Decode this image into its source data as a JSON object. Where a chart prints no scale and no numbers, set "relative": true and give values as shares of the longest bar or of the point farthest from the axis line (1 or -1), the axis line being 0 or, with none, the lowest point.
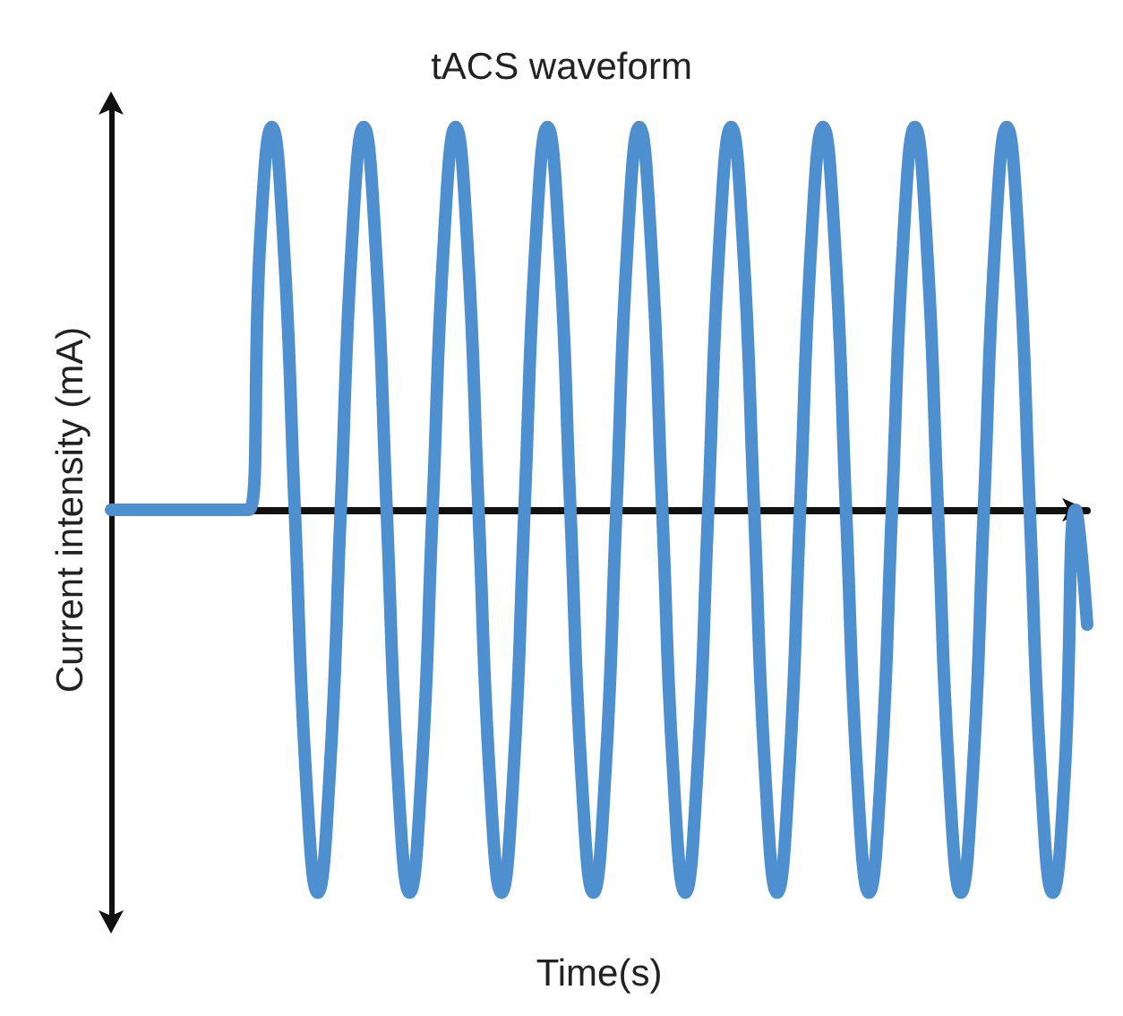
{
  "chart_data": {
    "type": "line",
    "title": "tACS waveform",
    "xlabel": "Time(s)",
    "ylabel": "Current intensity (mA)",
    "relative": true,
    "categories": [
      null,
      null,
      null,
      null,
      null,
      null,
      null,
      null,
      null,
      null,
      null,
      null,
      null,
      null,
      null,
      null,
      null,
      null,
      null,
      null,
      null,
      null,
      null,
      null,
      null,
      null,
      null,
      null,
      null,
      null,
      null,
      null,
      null,
      null,
      null,
      null,
      null,
      null,
      null,
      null,
      null,
      null,
      null,
      null,
      null,
      null,
      null,
      null,
      null,
      null,
      null,
      null,
      null,
      null,
      null,
      null,
      null,
      null,
      null,
      null,
      null,
      null,
      null,
      null,
      null,
      null,
      null,
      null,
      null,
      null,
      null,
      null,
      null,
      null,
      null,
      null,
      null,
      null,
      null,
      null,
      null,
      null,
      null,
      null,
      null,
      null
    ],
    "series": [
      {
        "color": "#4d8fcf",
        "values": [
          0,
          0,
          0,
          0,
          0,
          0,
          0,
          0,
          0,
          0,
          0,
          0,
          0,
          0.71,
          1,
          0.71,
          0,
          -0.71,
          -1,
          -0.71,
          0,
          0.71,
          1,
          0.71,
          0,
          -0.71,
          -1,
          -0.71,
          0,
          0.71,
          1,
          0.71,
          0,
          -0.71,
          -1,
          -0.71,
          0,
          0.71,
          1,
          0.71,
          0,
          -0.71,
          -1,
          -0.71,
          0,
          0.71,
          1,
          0.71,
          0,
          -0.71,
          -1,
          -0.71,
          0,
          0.71,
          1,
          0.71,
          0,
          -0.71,
          -1,
          -0.71,
          0,
          0.71,
          1,
          0.71,
          0,
          -0.71,
          -1,
          -0.71,
          0,
          0.71,
          1,
          0.71,
          0,
          -0.71,
          -1,
          -0.71,
          0,
          0.71,
          1,
          0.71,
          0,
          -0.71,
          -1,
          -0.71,
          0,
          -0.3
        ]
      }
    ]
  }
}
